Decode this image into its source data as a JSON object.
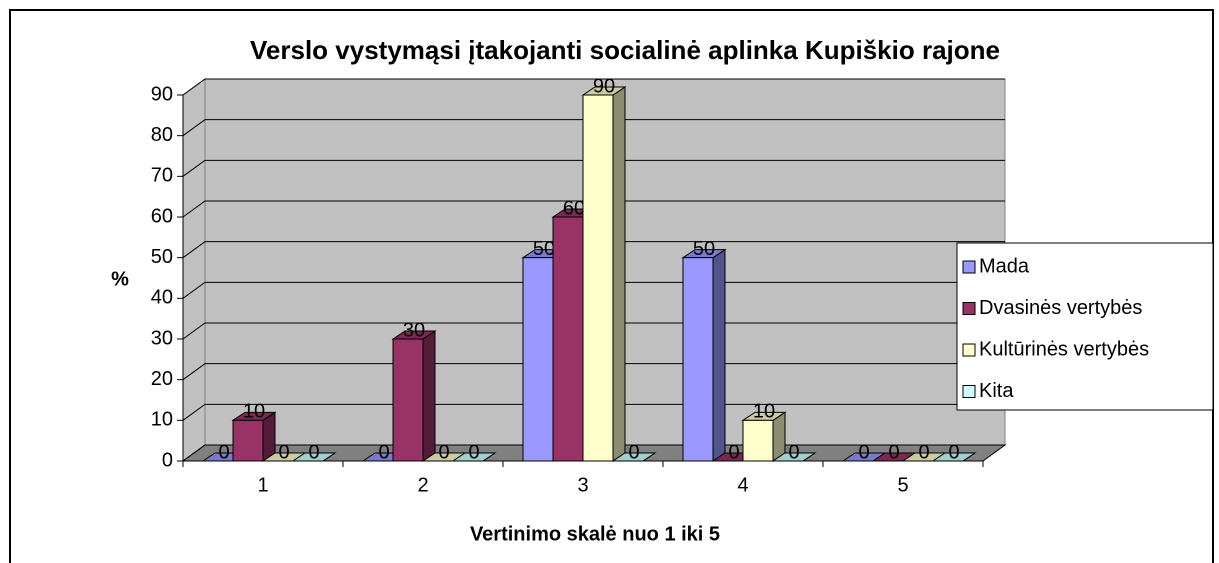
{
  "chart_data": {
    "type": "bar3d",
    "title": "Verslo vystymąsi įtakojanti socialinė aplinka Kupiškio rajone",
    "y_label": "%",
    "x_label": "Vertinimo skalė nuo 1 iki 5",
    "categories": [
      "1",
      "2",
      "3",
      "4",
      "5"
    ],
    "series": [
      {
        "name": "Mada",
        "color": "#9999ff",
        "values": [
          0,
          0,
          50,
          50,
          0
        ]
      },
      {
        "name": "Dvasinės vertybės",
        "color": "#993366",
        "values": [
          10,
          30,
          60,
          0,
          0
        ]
      },
      {
        "name": "Kultūrinės vertybės",
        "color": "#ffffcc",
        "values": [
          0,
          0,
          90,
          10,
          0
        ]
      },
      {
        "name": "Kita",
        "color": "#ccffff",
        "values": [
          0,
          0,
          0,
          0,
          0
        ]
      }
    ],
    "ylim": [
      0,
      90
    ],
    "yticks": [
      0,
      10,
      20,
      30,
      40,
      50,
      60,
      70,
      80,
      90
    ],
    "grid": true,
    "legend": "right"
  }
}
